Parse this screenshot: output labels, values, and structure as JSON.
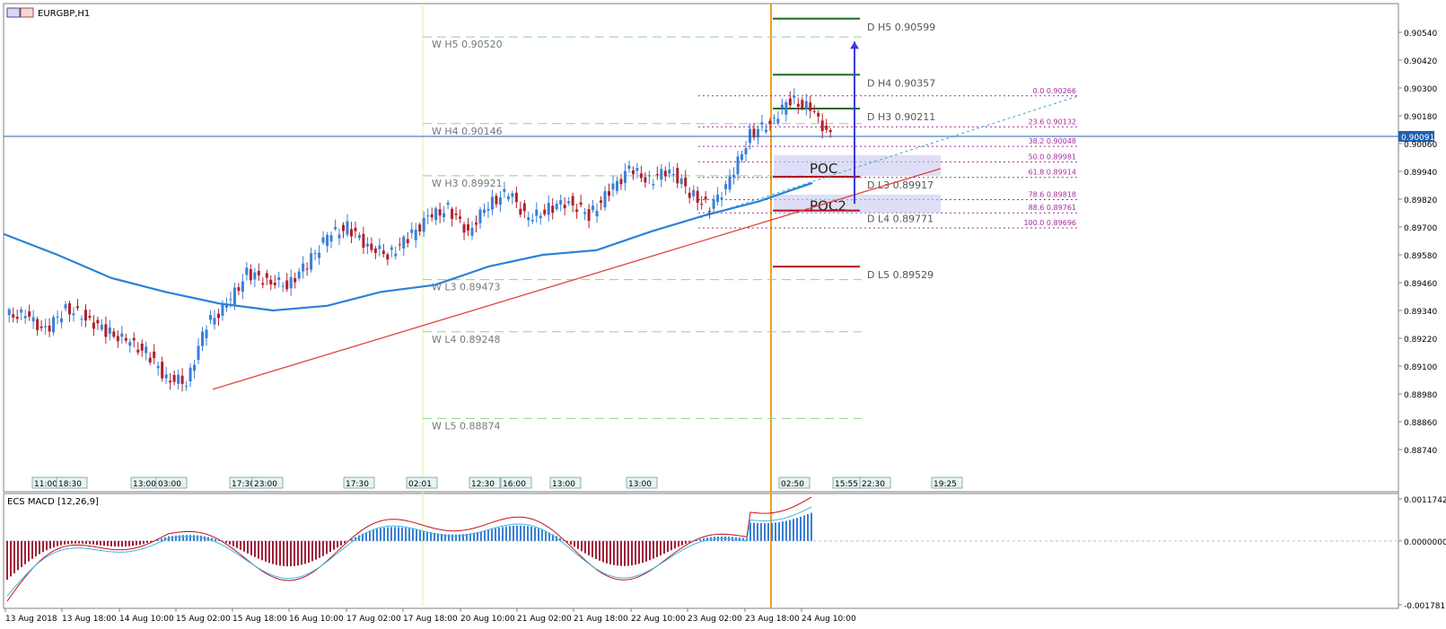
{
  "window": {
    "title": "EURGBP,H1"
  },
  "price_axis": {
    "ticks": [
      "0.90540",
      "0.90420",
      "0.90300",
      "0.90180",
      "0.90060",
      "0.89940",
      "0.89820",
      "0.89700",
      "0.89580",
      "0.89460",
      "0.89340",
      "0.89220",
      "0.89100",
      "0.88980",
      "0.88860",
      "0.88740"
    ],
    "current_price": "0.90091"
  },
  "macd_panel": {
    "label": "ECS MACD [12,26,9]",
    "ticks": [
      "0.0011742",
      "0.0000000",
      "-0.0017817"
    ]
  },
  "time_axis": [
    "13 Aug 2018",
    "13 Aug 18:00",
    "14 Aug 10:00",
    "15 Aug 02:00",
    "15 Aug 18:00",
    "16 Aug 10:00",
    "17 Aug 02:00",
    "17 Aug 18:00",
    "20 Aug 10:00",
    "21 Aug 02:00",
    "21 Aug 18:00",
    "22 Aug 10:00",
    "23 Aug 02:00",
    "23 Aug 18:00",
    "24 Aug 10:00"
  ],
  "session_bar_labels": [
    "11:00",
    "18:30",
    "13:00",
    "03:00",
    "17:30",
    "23:00",
    "17:30",
    "02:01",
    "12:30",
    "16:00",
    "13:00",
    "13:00",
    "02:50",
    "15:55",
    "22:30",
    "19:25"
  ],
  "weekly_pivots": [
    {
      "label": "W  H5 0.90520",
      "price": 0.9052
    },
    {
      "label": "W  H4 0.90146",
      "price": 0.90146
    },
    {
      "label": "W  H3 0.89921",
      "price": 0.89921
    },
    {
      "label": "W  L3 0.89473",
      "price": 0.89473
    },
    {
      "label": "W  L4 0.89248",
      "price": 0.89248
    },
    {
      "label": "W  L5 0.88874",
      "price": 0.88874
    }
  ],
  "daily_pivots": [
    {
      "label": "D  H5 0.90599",
      "price": 0.90599,
      "color": "#1e6b1e"
    },
    {
      "label": "D  H4 0.90357",
      "price": 0.90357,
      "color": "#1e6b1e"
    },
    {
      "label": "D  H3 0.90211",
      "price": 0.90211,
      "color": "#1e6b1e"
    },
    {
      "label": "D  L3 0.89917",
      "price": 0.89917,
      "color": "#b0141e"
    },
    {
      "label": "D  L4 0.89771",
      "price": 0.89771,
      "color": "#b0141e"
    },
    {
      "label": "D  L5 0.89529",
      "price": 0.89529,
      "color": "#b0141e"
    }
  ],
  "fibonacci": [
    {
      "label": "0.0  0.90266",
      "price": 0.90266
    },
    {
      "label": "23.6  0.90132",
      "price": 0.90132
    },
    {
      "label": "38.2  0.90048",
      "price": 0.90048
    },
    {
      "label": "50.0  0.89981",
      "price": 0.89981
    },
    {
      "label": "61.8  0.89914",
      "price": 0.89914
    },
    {
      "label": "78.6  0.89818",
      "price": 0.89818
    },
    {
      "label": "88.6  0.89761",
      "price": 0.89761
    },
    {
      "label": "100.0  0.89696",
      "price": 0.89696
    }
  ],
  "zones": [
    {
      "label": "POC",
      "from": 0.8992,
      "to": 0.9001
    },
    {
      "label": "POC2",
      "from": 0.8976,
      "to": 0.8984
    }
  ],
  "colors": {
    "bull": "#3a7fd6",
    "bear": "#b0202c",
    "ma": "#2b82d9",
    "trendline": "#e0443c",
    "fib": "#a0309a",
    "weekly": "#8fd48f",
    "vline": "#f0a020",
    "target_arrow": "#3a3adc",
    "macd_pos": "#3a7fd6",
    "macd_neg": "#a0203a",
    "macd_line": "#c0101a",
    "signal_line": "#40b8e0"
  },
  "chart_data": {
    "type": "candlestick",
    "title": "EURGBP,H1",
    "ylim": [
      0.8869,
      0.9062
    ],
    "x": [
      "13 Aug 2018",
      "13 Aug 18:00",
      "14 Aug 10:00",
      "15 Aug 02:00",
      "15 Aug 18:00",
      "16 Aug 10:00",
      "17 Aug 02:00",
      "17 Aug 18:00",
      "20 Aug 10:00",
      "21 Aug 02:00",
      "21 Aug 18:00",
      "22 Aug 10:00",
      "23 Aug 02:00",
      "23 Aug 18:00",
      "24 Aug 10:00"
    ],
    "close_path": [
      0.8932,
      0.8925,
      0.8935,
      0.8931,
      0.8925,
      0.8921,
      0.8916,
      0.8905,
      0.8903,
      0.8928,
      0.8936,
      0.895,
      0.8947,
      0.8945,
      0.8954,
      0.8966,
      0.897,
      0.8962,
      0.8958,
      0.8965,
      0.8974,
      0.8978,
      0.8968,
      0.898,
      0.8985,
      0.8973,
      0.8978,
      0.8981,
      0.8975,
      0.8985,
      0.8995,
      0.899,
      0.8995,
      0.8985,
      0.8978,
      0.899,
      0.901,
      0.9015,
      0.9025,
      0.9021,
      0.9009
    ],
    "ma": [
      0.8967,
      0.8958,
      0.8948,
      0.8942,
      0.8937,
      0.8934,
      0.8936,
      0.8942,
      0.8945,
      0.8953,
      0.8958,
      0.896,
      0.8968,
      0.8975,
      0.8981,
      0.8989
    ],
    "trendline": [
      [
        0.89,
        0.8995
      ]
    ],
    "macd_ylim": [
      -0.0017817,
      0.0011742
    ]
  }
}
